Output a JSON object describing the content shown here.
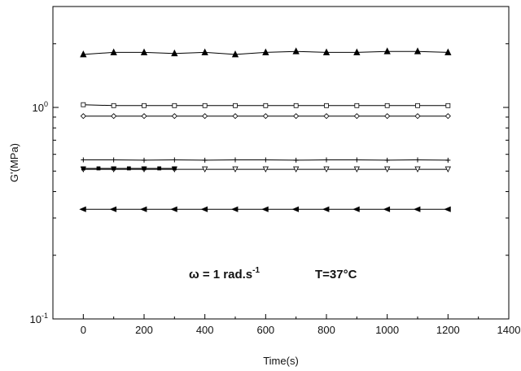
{
  "chart_data": {
    "type": "line",
    "xlabel": "Time(s)",
    "ylabel": "G'(MPa)",
    "x_scale": "linear",
    "y_scale": "log",
    "xlim": [
      -100,
      1400
    ],
    "ylim": [
      0.1,
      3.0
    ],
    "x_ticks": [
      {
        "value": 0,
        "label": "0"
      },
      {
        "value": 200,
        "label": "200"
      },
      {
        "value": 400,
        "label": "400"
      },
      {
        "value": 600,
        "label": "600"
      },
      {
        "value": 800,
        "label": "800"
      },
      {
        "value": 1000,
        "label": "1000"
      },
      {
        "value": 1200,
        "label": "1200"
      },
      {
        "value": 1400,
        "label": "1400"
      }
    ],
    "y_ticks": [
      {
        "value": 1.0,
        "base": "10",
        "exp": "0"
      },
      {
        "value": 0.1,
        "base": "10",
        "exp": "-1"
      }
    ],
    "grid": false,
    "legend": "none",
    "annotations": [
      {
        "text": "ω = 1 rad.s",
        "sup": "-1"
      },
      {
        "text": "T=37°C"
      }
    ],
    "series": [
      {
        "marker": "filled-triangle-up",
        "x": [
          0,
          100,
          200,
          300,
          400,
          500,
          600,
          700,
          800,
          900,
          1000,
          1100,
          1200
        ],
        "y": [
          1.78,
          1.82,
          1.82,
          1.8,
          1.82,
          1.78,
          1.82,
          1.84,
          1.82,
          1.82,
          1.84,
          1.84,
          1.82
        ]
      },
      {
        "marker": "open-square",
        "x": [
          0,
          100,
          200,
          300,
          400,
          500,
          600,
          700,
          800,
          900,
          1000,
          1100,
          1200
        ],
        "y": [
          1.03,
          1.02,
          1.02,
          1.02,
          1.02,
          1.02,
          1.02,
          1.02,
          1.02,
          1.02,
          1.02,
          1.02,
          1.02
        ]
      },
      {
        "marker": "open-diamond",
        "x": [
          0,
          100,
          200,
          300,
          400,
          500,
          600,
          700,
          800,
          900,
          1000,
          1100,
          1200
        ],
        "y": [
          0.91,
          0.91,
          0.91,
          0.91,
          0.91,
          0.91,
          0.91,
          0.91,
          0.91,
          0.91,
          0.91,
          0.91,
          0.91
        ]
      },
      {
        "marker": "plus",
        "x": [
          0,
          100,
          200,
          300,
          400,
          500,
          600,
          700,
          800,
          900,
          1000,
          1100,
          1200
        ],
        "y": [
          0.565,
          0.565,
          0.563,
          0.565,
          0.563,
          0.565,
          0.565,
          0.563,
          0.565,
          0.565,
          0.563,
          0.565,
          0.563
        ]
      },
      {
        "marker": "open-triangle-down",
        "x": [
          0,
          100,
          200,
          300,
          400,
          500,
          600,
          700,
          800,
          900,
          1000,
          1100,
          1200
        ],
        "y": [
          0.51,
          0.51,
          0.51,
          0.51,
          0.51,
          0.51,
          0.51,
          0.51,
          0.51,
          0.51,
          0.51,
          0.51,
          0.51
        ]
      },
      {
        "marker": "filled-square",
        "x": [
          0,
          50,
          100,
          150,
          200,
          250,
          300
        ],
        "y": [
          0.515,
          0.515,
          0.515,
          0.515,
          0.515,
          0.515,
          0.515
        ]
      },
      {
        "marker": "filled-triangle-left",
        "x": [
          0,
          100,
          200,
          300,
          400,
          500,
          600,
          700,
          800,
          900,
          1000,
          1100,
          1200
        ],
        "y": [
          0.33,
          0.33,
          0.33,
          0.33,
          0.33,
          0.33,
          0.33,
          0.33,
          0.33,
          0.33,
          0.33,
          0.33,
          0.33
        ]
      }
    ]
  }
}
